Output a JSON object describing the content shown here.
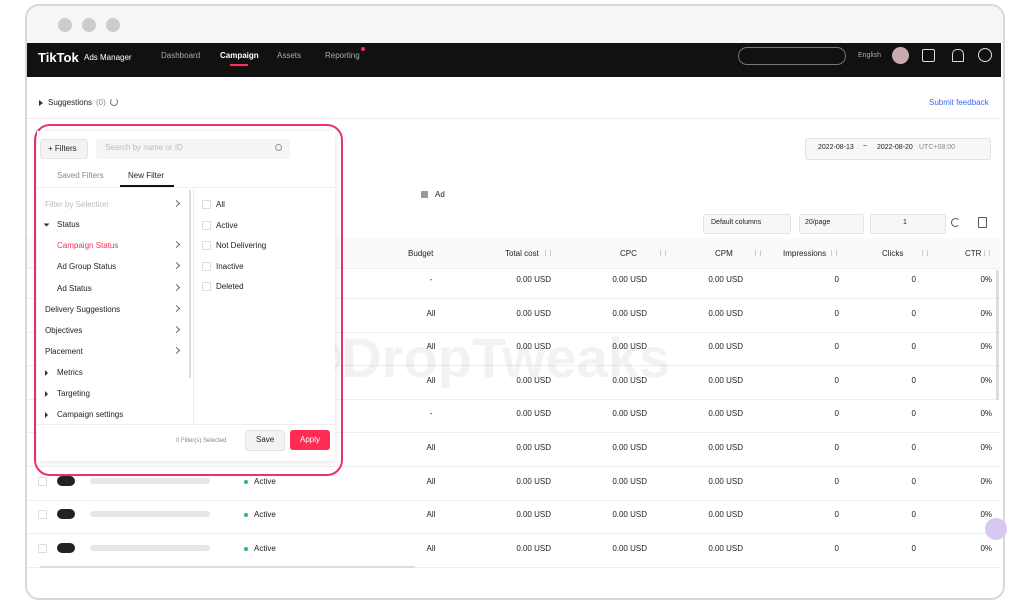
{
  "nav": {
    "logo": "TikTok",
    "product": "Ads Manager",
    "items": [
      "Dashboard",
      "Campaign",
      "Assets",
      "Reporting"
    ],
    "language": "English"
  },
  "suggestions": {
    "label": "Suggestions",
    "count": "(0)",
    "feedback": "Submit feedback"
  },
  "date_range": {
    "start": "2022-08-13",
    "separator": "~",
    "end": "2022-08-20",
    "timezone": "UTC+08:00"
  },
  "level_tab": "Ad",
  "toolbar": {
    "columns": "Default columns",
    "page_size": "20/page",
    "page": "1"
  },
  "watermark": "©DropTweaks",
  "table": {
    "headers": [
      "Budget",
      "Total cost",
      "CPC",
      "CPM",
      "Impressions",
      "Clicks",
      "CTR"
    ],
    "rows": [
      {
        "budget": "-",
        "total_cost": "0.00 USD",
        "cpc": "0.00 USD",
        "cpm": "0.00 USD",
        "impressions": "0",
        "clicks": "0",
        "ctr": "0%"
      },
      {
        "budget": "All",
        "total_cost": "0.00 USD",
        "cpc": "0.00 USD",
        "cpm": "0.00 USD",
        "impressions": "0",
        "clicks": "0",
        "ctr": "0%"
      },
      {
        "budget": "All",
        "total_cost": "0.00 USD",
        "cpc": "0.00 USD",
        "cpm": "0.00 USD",
        "impressions": "0",
        "clicks": "0",
        "ctr": "0%"
      },
      {
        "budget": "All",
        "total_cost": "0.00 USD",
        "cpc": "0.00 USD",
        "cpm": "0.00 USD",
        "impressions": "0",
        "clicks": "0",
        "ctr": "0%"
      },
      {
        "budget": "-",
        "total_cost": "0.00 USD",
        "cpc": "0.00 USD",
        "cpm": "0.00 USD",
        "impressions": "0",
        "clicks": "0",
        "ctr": "0%"
      },
      {
        "budget": "All",
        "total_cost": "0.00 USD",
        "cpc": "0.00 USD",
        "cpm": "0.00 USD",
        "impressions": "0",
        "clicks": "0",
        "ctr": "0%"
      },
      {
        "status": "Active",
        "budget": "All",
        "total_cost": "0.00 USD",
        "cpc": "0.00 USD",
        "cpm": "0.00 USD",
        "impressions": "0",
        "clicks": "0",
        "ctr": "0%"
      },
      {
        "status": "Active",
        "budget": "All",
        "total_cost": "0.00 USD",
        "cpc": "0.00 USD",
        "cpm": "0.00 USD",
        "impressions": "0",
        "clicks": "0",
        "ctr": "0%"
      },
      {
        "status": "Active",
        "budget": "All",
        "total_cost": "0.00 USD",
        "cpc": "0.00 USD",
        "cpm": "0.00 USD",
        "impressions": "0",
        "clicks": "0",
        "ctr": "0%"
      }
    ]
  },
  "filter_panel": {
    "button": "+ Filters",
    "search_placeholder": "Search by name or ID",
    "tabs": [
      "Saved Filters",
      "New Filter"
    ],
    "section_title": "Filter by Selection",
    "groups": [
      {
        "label": "Status",
        "children": [
          "Campaign Status",
          "Ad Group Status",
          "Ad Status"
        ]
      },
      {
        "label": "Delivery Suggestions"
      },
      {
        "label": "Objectives"
      },
      {
        "label": "Placement"
      },
      {
        "label": "Metrics"
      },
      {
        "label": "Targeting"
      },
      {
        "label": "Campaign settings"
      }
    ],
    "options": [
      "All",
      "Active",
      "Not Delivering",
      "Inactive",
      "Deleted"
    ],
    "selected_count": "0 Filter(s) Selected",
    "save": "Save",
    "apply": "Apply"
  }
}
